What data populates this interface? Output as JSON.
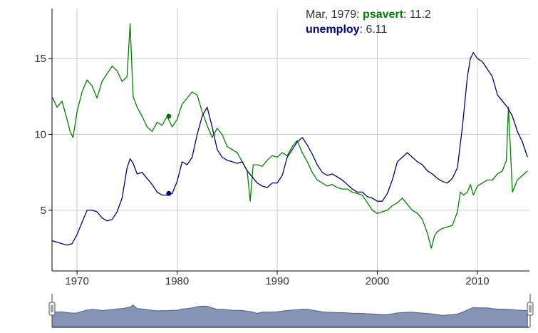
{
  "legend": {
    "date_label": "Mar, 1979",
    "psavert_name": "psavert",
    "psavert_value": "11.2",
    "unemploy_name": "unemploy",
    "unemploy_value": "6.11"
  },
  "colors": {
    "psavert": "#008000",
    "unemploy": "#000080",
    "grid": "#cccccc",
    "range_fill": "#8494b6",
    "range_stroke": "#4c5f86"
  },
  "chart_data": {
    "type": "line",
    "xlim": [
      1967.5,
      2015.2
    ],
    "ylim": [
      1.0,
      18.3
    ],
    "grid": true,
    "legend_position": "top-right",
    "x_ticks": [
      1970,
      1980,
      1990,
      2000,
      2010
    ],
    "y_ticks": [
      5,
      10,
      15
    ],
    "highlight": {
      "x": 1979.17,
      "psavert": 11.2,
      "unemploy": 6.11
    },
    "series": [
      {
        "name": "psavert",
        "x": [
          1967.5,
          1968.0,
          1968.5,
          1969.0,
          1969.3,
          1969.6,
          1970.0,
          1970.5,
          1971.0,
          1971.5,
          1972.0,
          1972.5,
          1973.0,
          1973.5,
          1974.0,
          1974.5,
          1975.0,
          1975.3,
          1975.6,
          1976.0,
          1976.5,
          1977.0,
          1977.5,
          1978.0,
          1978.5,
          1979.0,
          1979.5,
          1980.0,
          1980.5,
          1981.0,
          1981.5,
          1982.0,
          1982.5,
          1983.0,
          1983.5,
          1984.0,
          1984.5,
          1985.0,
          1985.5,
          1986.0,
          1986.5,
          1987.0,
          1987.3,
          1987.6,
          1988.0,
          1988.5,
          1989.0,
          1989.5,
          1990.0,
          1990.5,
          1991.0,
          1991.5,
          1992.0,
          1992.5,
          1993.0,
          1993.5,
          1994.0,
          1994.5,
          1995.0,
          1995.5,
          1996.0,
          1996.5,
          1997.0,
          1997.5,
          1998.0,
          1998.5,
          1999.0,
          1999.5,
          2000.0,
          2000.5,
          2001.0,
          2001.5,
          2002.0,
          2002.5,
          2003.0,
          2003.5,
          2004.0,
          2004.5,
          2005.0,
          2005.4,
          2005.7,
          2006.0,
          2006.5,
          2007.0,
          2007.5,
          2008.0,
          2008.3,
          2008.6,
          2009.0,
          2009.3,
          2009.6,
          2010.0,
          2010.5,
          2011.0,
          2011.5,
          2012.0,
          2012.5,
          2012.9,
          2013.1,
          2013.5,
          2014.0,
          2014.5,
          2015.0
        ],
        "values": [
          12.5,
          11.8,
          12.2,
          11.0,
          10.2,
          9.8,
          11.5,
          12.8,
          13.6,
          13.2,
          12.4,
          13.5,
          14.0,
          14.5,
          14.2,
          13.5,
          13.8,
          17.3,
          12.5,
          11.8,
          11.2,
          10.5,
          10.2,
          10.8,
          10.6,
          11.2,
          10.5,
          11.0,
          12.0,
          12.4,
          12.8,
          12.6,
          11.5,
          10.6,
          9.8,
          10.4,
          10.0,
          9.2,
          9.0,
          8.8,
          8.2,
          7.6,
          5.6,
          8.0,
          8.0,
          7.9,
          8.3,
          8.6,
          8.5,
          8.8,
          8.6,
          9.2,
          9.6,
          8.8,
          8.2,
          7.5,
          7.0,
          6.8,
          6.6,
          6.7,
          6.5,
          6.4,
          6.4,
          6.2,
          6.1,
          6.0,
          5.5,
          5.0,
          4.8,
          4.9,
          5.0,
          5.3,
          5.5,
          5.8,
          5.4,
          5.0,
          4.8,
          4.4,
          3.5,
          2.5,
          3.3,
          3.6,
          3.8,
          3.9,
          4.0,
          4.9,
          6.2,
          6.0,
          6.2,
          6.7,
          6.0,
          6.6,
          6.8,
          7.0,
          7.0,
          7.4,
          7.6,
          8.3,
          11.8,
          6.2,
          7.0,
          7.3,
          7.6
        ]
      },
      {
        "name": "unemploy",
        "x": [
          1967.5,
          1968.0,
          1968.5,
          1969.0,
          1969.5,
          1970.0,
          1970.5,
          1971.0,
          1971.5,
          1972.0,
          1972.5,
          1973.0,
          1973.5,
          1974.0,
          1974.5,
          1975.0,
          1975.3,
          1975.6,
          1976.0,
          1976.5,
          1977.0,
          1977.5,
          1978.0,
          1978.5,
          1979.0,
          1979.5,
          1980.0,
          1980.5,
          1981.0,
          1981.5,
          1982.0,
          1982.5,
          1983.0,
          1983.5,
          1984.0,
          1984.5,
          1985.0,
          1985.5,
          1986.0,
          1986.5,
          1987.0,
          1987.5,
          1988.0,
          1988.5,
          1989.0,
          1989.5,
          1990.0,
          1990.5,
          1991.0,
          1991.5,
          1992.0,
          1992.5,
          1993.0,
          1993.5,
          1994.0,
          1994.5,
          1995.0,
          1995.5,
          1996.0,
          1996.5,
          1997.0,
          1997.5,
          1998.0,
          1998.5,
          1999.0,
          1999.5,
          2000.0,
          2000.5,
          2001.0,
          2001.5,
          2002.0,
          2002.5,
          2003.0,
          2003.5,
          2004.0,
          2004.5,
          2005.0,
          2005.5,
          2006.0,
          2006.5,
          2007.0,
          2007.5,
          2008.0,
          2008.5,
          2009.0,
          2009.3,
          2009.6,
          2010.0,
          2010.5,
          2011.0,
          2011.5,
          2012.0,
          2012.5,
          2013.0,
          2013.5,
          2014.0,
          2014.5,
          2015.0
        ],
        "values": [
          3.0,
          2.9,
          2.8,
          2.7,
          2.8,
          3.4,
          4.2,
          5.0,
          5.0,
          4.9,
          4.5,
          4.3,
          4.4,
          4.9,
          5.8,
          7.8,
          8.4,
          8.1,
          7.4,
          7.5,
          7.1,
          6.7,
          6.2,
          6.0,
          6.0,
          6.1,
          6.9,
          8.2,
          8.0,
          8.5,
          10.0,
          11.2,
          11.8,
          10.5,
          9.0,
          8.5,
          8.3,
          8.2,
          8.1,
          8.2,
          7.6,
          7.2,
          6.8,
          6.6,
          6.5,
          6.8,
          6.8,
          7.3,
          8.5,
          9.0,
          9.5,
          9.8,
          9.3,
          8.7,
          8.0,
          7.5,
          7.3,
          7.4,
          7.2,
          7.0,
          6.7,
          6.4,
          6.2,
          6.2,
          5.9,
          5.8,
          5.6,
          5.6,
          6.1,
          7.0,
          8.2,
          8.5,
          8.8,
          8.5,
          8.2,
          8.0,
          7.6,
          7.4,
          7.1,
          6.9,
          6.8,
          7.1,
          7.8,
          10.5,
          13.8,
          15.0,
          15.4,
          15.0,
          14.8,
          14.3,
          13.8,
          12.6,
          12.2,
          11.8,
          11.2,
          10.2,
          9.5,
          8.5
        ]
      }
    ]
  }
}
